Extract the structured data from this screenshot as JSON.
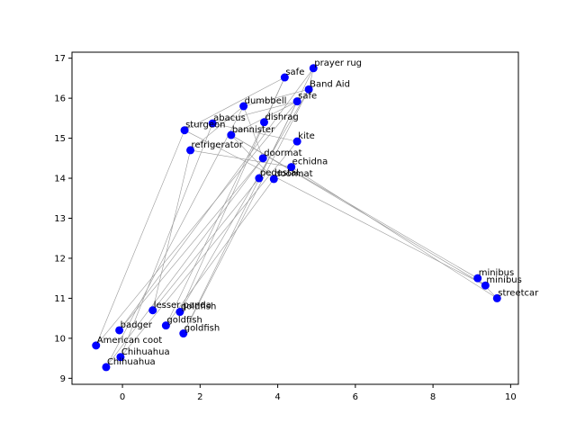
{
  "chart_data": {
    "type": "scatter",
    "title": "",
    "xlabel": "",
    "ylabel": "",
    "xlim": [
      -1.3,
      10.2
    ],
    "ylim": [
      8.85,
      17.15
    ],
    "xticks": [
      0,
      2,
      4,
      6,
      8,
      10
    ],
    "yticks": [
      9,
      10,
      11,
      12,
      13,
      14,
      15,
      16,
      17
    ],
    "grid": false,
    "point_color": "#0000ff",
    "edge_color": "#999999",
    "points": [
      {
        "label": "prayer rug",
        "x": 4.92,
        "y": 16.75
      },
      {
        "label": "safe",
        "x": 4.18,
        "y": 16.52
      },
      {
        "label": "Band Aid",
        "x": 4.8,
        "y": 16.22
      },
      {
        "label": "safe",
        "x": 4.5,
        "y": 15.92
      },
      {
        "label": "dumbbell",
        "x": 3.12,
        "y": 15.8
      },
      {
        "label": "dishrag",
        "x": 3.65,
        "y": 15.4
      },
      {
        "label": "abacus",
        "x": 2.32,
        "y": 15.37
      },
      {
        "label": "sturgeon",
        "x": 1.6,
        "y": 15.2
      },
      {
        "label": "bannister",
        "x": 2.8,
        "y": 15.08
      },
      {
        "label": "kite",
        "x": 4.5,
        "y": 14.92
      },
      {
        "label": "refrigerator",
        "x": 1.75,
        "y": 14.7
      },
      {
        "label": "doormat",
        "x": 3.62,
        "y": 14.5
      },
      {
        "label": "echidna",
        "x": 4.35,
        "y": 14.28
      },
      {
        "label": "pedestal",
        "x": 3.52,
        "y": 14.0
      },
      {
        "label": "doormat",
        "x": 3.9,
        "y": 13.98
      },
      {
        "label": "minibus",
        "x": 9.15,
        "y": 11.5
      },
      {
        "label": "minibus",
        "x": 9.35,
        "y": 11.32
      },
      {
        "label": "streetcar",
        "x": 9.65,
        "y": 11.0
      },
      {
        "label": "lesser panda",
        "x": 0.78,
        "y": 10.7
      },
      {
        "label": "goldfish",
        "x": 1.48,
        "y": 10.66
      },
      {
        "label": "goldfish",
        "x": 1.12,
        "y": 10.32
      },
      {
        "label": "badger",
        "x": -0.08,
        "y": 10.2
      },
      {
        "label": "goldfish",
        "x": 1.57,
        "y": 10.12
      },
      {
        "label": "American coot",
        "x": -0.68,
        "y": 9.82
      },
      {
        "label": "Chihuahua",
        "x": -0.05,
        "y": 9.53
      },
      {
        "label": "Chihuahua",
        "x": -0.42,
        "y": 9.28
      }
    ],
    "edges": [
      [
        0,
        13
      ],
      [
        0,
        21
      ],
      [
        0,
        2
      ],
      [
        1,
        7
      ],
      [
        1,
        19
      ],
      [
        1,
        5
      ],
      [
        2,
        22
      ],
      [
        2,
        4
      ],
      [
        3,
        6
      ],
      [
        3,
        23
      ],
      [
        3,
        8
      ],
      [
        4,
        11
      ],
      [
        4,
        10
      ],
      [
        5,
        20
      ],
      [
        6,
        9
      ],
      [
        7,
        16
      ],
      [
        8,
        14
      ],
      [
        8,
        15
      ],
      [
        9,
        24
      ],
      [
        10,
        18
      ],
      [
        10,
        12
      ],
      [
        11,
        25
      ],
      [
        12,
        17
      ],
      [
        13,
        18
      ],
      [
        14,
        20
      ],
      [
        17,
        15
      ],
      [
        22,
        3
      ],
      [
        23,
        7
      ],
      [
        24,
        6
      ],
      [
        25,
        4
      ],
      [
        19,
        2
      ],
      [
        21,
        11
      ],
      [
        16,
        8
      ]
    ]
  }
}
